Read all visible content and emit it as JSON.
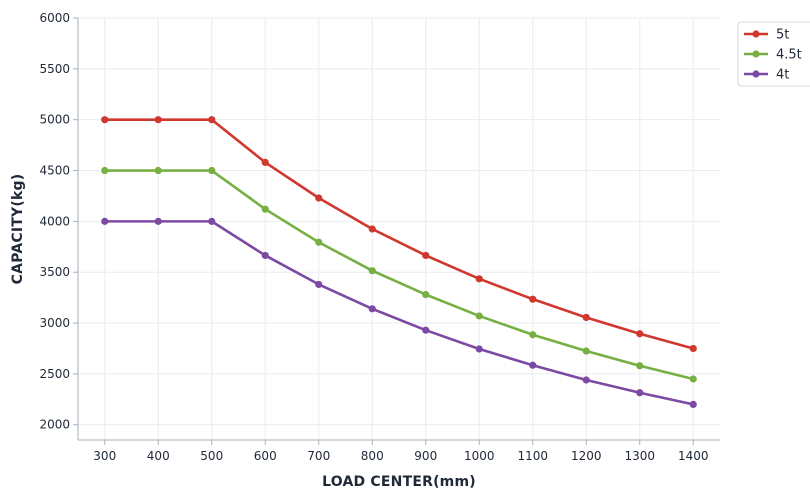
{
  "chart_data": {
    "type": "line",
    "title": "",
    "xlabel": "LOAD CENTER(mm)",
    "ylabel": "CAPACITY(kg)",
    "categories": [
      "300",
      "400",
      "500",
      "600",
      "700",
      "800",
      "900",
      "1000",
      "1100",
      "1200",
      "1300",
      "1400"
    ],
    "x": [
      300,
      400,
      500,
      600,
      700,
      800,
      900,
      1000,
      1100,
      1200,
      1300,
      1400
    ],
    "ylim": [
      1850,
      6000
    ],
    "yticks": [
      2000,
      2500,
      3000,
      3500,
      4000,
      4500,
      5000,
      5500,
      6000
    ],
    "ytick_labels": [
      "2000",
      "2500",
      "3000",
      "3500",
      "4000",
      "4500",
      "5000",
      "5500",
      "6000"
    ],
    "grid": true,
    "legend_position": "top-right",
    "series": [
      {
        "name": "5t",
        "color": "#d0372f",
        "values": [
          5000,
          5000,
          5000,
          4580,
          4230,
          3925,
          3665,
          3435,
          3235,
          3055,
          2895,
          2750
        ]
      },
      {
        "name": "4.5t",
        "color": "#76b043",
        "values": [
          4500,
          4500,
          4500,
          4120,
          3795,
          3515,
          3280,
          3070,
          2885,
          2725,
          2580,
          2450
        ]
      },
      {
        "name": "4t",
        "color": "#7d4aa3",
        "values": [
          4000,
          4000,
          4000,
          3665,
          3380,
          3140,
          2930,
          2745,
          2585,
          2440,
          2315,
          2200
        ]
      }
    ]
  }
}
